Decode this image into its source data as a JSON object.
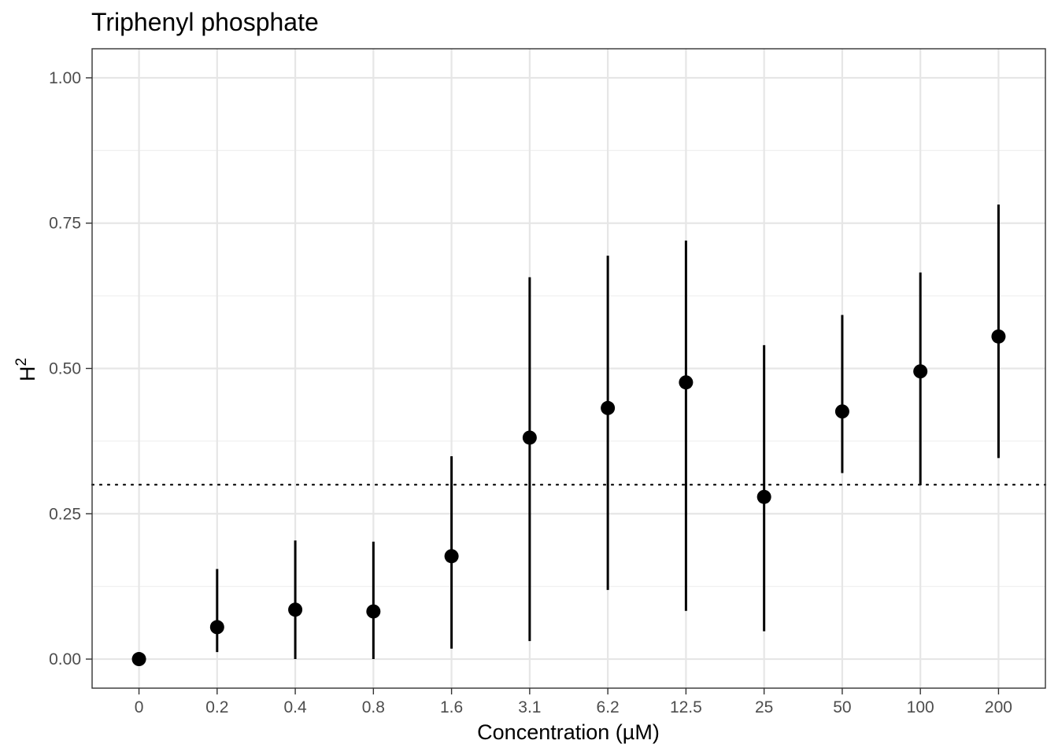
{
  "chart_data": {
    "type": "scatter",
    "title": "Triphenyl phosphate",
    "xlabel": "Concentration (µM)",
    "ylabel_base": "H",
    "ylabel_sup": "2",
    "categories": [
      "0",
      "0.2",
      "0.4",
      "0.8",
      "1.6",
      "3.1",
      "6.2",
      "12.5",
      "25",
      "50",
      "100",
      "200"
    ],
    "values": [
      0.0,
      0.055,
      0.085,
      0.082,
      0.177,
      0.381,
      0.432,
      0.476,
      0.279,
      0.426,
      0.495,
      0.555
    ],
    "lower": [
      0.0,
      0.012,
      0.0,
      0.0,
      0.018,
      0.031,
      0.119,
      0.083,
      0.048,
      0.32,
      0.299,
      0.346
    ],
    "upper": [
      0.0,
      0.155,
      0.204,
      0.202,
      0.349,
      0.657,
      0.694,
      0.72,
      0.54,
      0.592,
      0.665,
      0.782
    ],
    "ylim": [
      -0.05,
      1.05
    ],
    "yticks": [
      0.0,
      0.25,
      0.5,
      0.75,
      1.0
    ],
    "ytick_labels": [
      "0.00",
      "0.25",
      "0.50",
      "0.75",
      "1.00"
    ],
    "reference_line": 0.3,
    "grid": true,
    "legend": "none",
    "colors": {
      "points": "#000000",
      "grid": "#e6e6e6",
      "tick_text": "#4d4d4d"
    }
  }
}
